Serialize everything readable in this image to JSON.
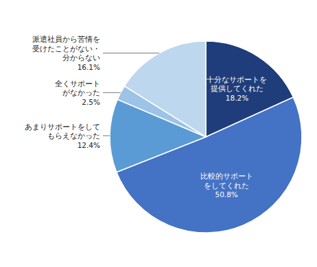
{
  "chart_data": {
    "type": "pie",
    "categories": [
      "十分なサポートを\n提供してくれた",
      "比較的サポート\nをしてくれた",
      "あまりサポートをして\nもらえなかった",
      "全くサポート\nがなかった",
      "派遣社員から苦情を\n受けたことがない・\n分からない"
    ],
    "values": [
      18.2,
      50.8,
      12.4,
      2.5,
      16.1
    ],
    "value_labels": [
      "18.2%",
      "50.8%",
      "12.4%",
      "2.5%",
      "16.1%"
    ],
    "colors": [
      "#1f3d7a",
      "#4472c4",
      "#5b9bd5",
      "#9dc3e6",
      "#bdd7ee"
    ],
    "data_labels": true
  }
}
